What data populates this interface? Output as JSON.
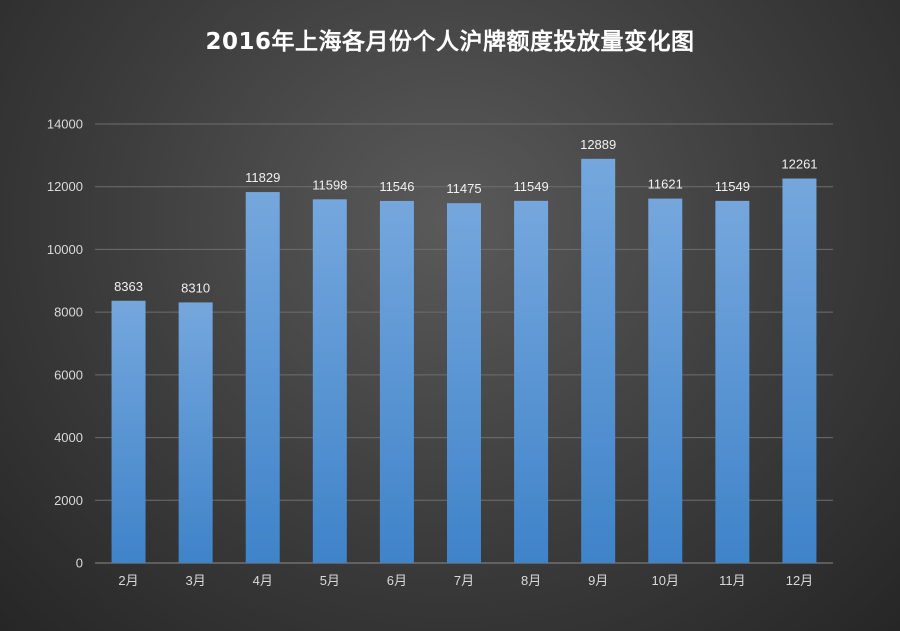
{
  "chart_data": {
    "type": "bar",
    "title": "2016年上海各月份个人沪牌额度投放量变化图",
    "categories": [
      "2月",
      "3月",
      "4月",
      "5月",
      "6月",
      "7月",
      "8月",
      "9月",
      "10月",
      "11月",
      "12月"
    ],
    "values": [
      8363,
      8310,
      11829,
      11598,
      11546,
      11475,
      11549,
      12889,
      11621,
      11549,
      12261
    ],
    "ylim": [
      0,
      14000
    ],
    "yticks": [
      0,
      2000,
      4000,
      6000,
      8000,
      10000,
      12000,
      14000
    ],
    "xlabel": "",
    "ylabel": "",
    "grid": true,
    "legend": "none",
    "data_labels": true,
    "bar_color_top": "#75a7dd",
    "bar_color_bottom": "#3f83c9"
  }
}
